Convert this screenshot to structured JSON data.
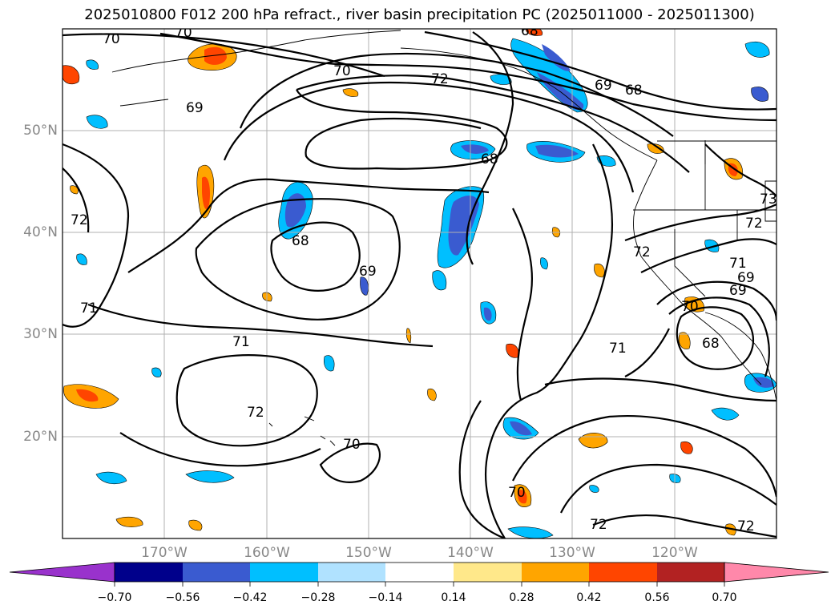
{
  "title": "2025010800 F012 200 hPa refract., river basin precipitation PC (2025011000 - 2025011300)",
  "map": {
    "lon_range": [
      -180,
      -110
    ],
    "lat_range": [
      10,
      60
    ],
    "lat_labels": [
      "50°N",
      "40°N",
      "30°N",
      "20°N"
    ],
    "lon_labels": [
      "170°W",
      "160°W",
      "150°W",
      "140°W",
      "130°W",
      "120°W"
    ],
    "grid": true,
    "contour_labels": [
      "70",
      "70",
      "70",
      "72",
      "69",
      "68",
      "69",
      "72",
      "68",
      "69",
      "71",
      "72",
      "71",
      "68",
      "70",
      "69",
      "68",
      "73",
      "72",
      "71",
      "70",
      "72",
      "72",
      "71",
      "69",
      "68",
      "70",
      "72",
      "70"
    ]
  },
  "colorbar": {
    "extend": "both",
    "ticks": [
      "−0.70",
      "−0.56",
      "−0.42",
      "−0.28",
      "−0.14",
      "0.14",
      "0.28",
      "0.42",
      "0.56",
      "0.70"
    ],
    "colors": [
      "#9932cc",
      "#00008b",
      "#3a5bd0",
      "#00bfff",
      "#b0e2ff",
      "#ffffff",
      "#ffe88a",
      "#ffa500",
      "#ff4500",
      "#b22222",
      "#ff88aa",
      "#ff88aa"
    ]
  }
}
